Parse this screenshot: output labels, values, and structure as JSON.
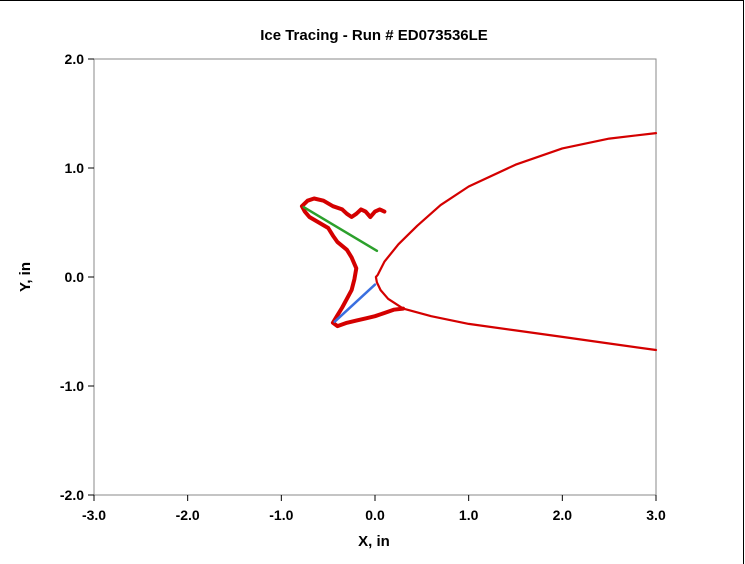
{
  "chart_data": {
    "type": "line",
    "title": "Ice Tracing - Run # ED073536LE",
    "xlabel": "X, in",
    "ylabel": "Y, in",
    "xlim": [
      -3.0,
      3.0
    ],
    "ylim": [
      -2.0,
      2.0
    ],
    "x_ticks": [
      "-3.0",
      "-2.0",
      "-1.0",
      "0.0",
      "1.0",
      "2.0",
      "3.0"
    ],
    "y_ticks": [
      "2.0",
      "1.0",
      "0.0",
      "-1.0",
      "-2.0"
    ],
    "grid": false,
    "legend": "none",
    "colors": {
      "ice": "#d40000",
      "airfoil": "#d40000",
      "upper_line": "#2ca02c",
      "lower_line": "#3a6fe0"
    },
    "series": [
      {
        "role": "airfoil",
        "points": [
          [
            3.0,
            1.32
          ],
          [
            2.5,
            1.27
          ],
          [
            2.0,
            1.18
          ],
          [
            1.5,
            1.03
          ],
          [
            1.0,
            0.83
          ],
          [
            0.7,
            0.66
          ],
          [
            0.45,
            0.47
          ],
          [
            0.25,
            0.3
          ],
          [
            0.1,
            0.14
          ],
          [
            0.03,
            0.02
          ],
          [
            0.01,
            0.0
          ],
          [
            0.02,
            -0.05
          ],
          [
            0.06,
            -0.12
          ],
          [
            0.14,
            -0.2
          ],
          [
            0.3,
            -0.29
          ],
          [
            0.6,
            -0.36
          ],
          [
            1.0,
            -0.43
          ],
          [
            1.5,
            -0.49
          ],
          [
            2.0,
            -0.55
          ],
          [
            2.5,
            -0.61
          ],
          [
            3.0,
            -0.67
          ]
        ]
      },
      {
        "role": "ice-upper-horn",
        "points": [
          [
            0.1,
            0.6
          ],
          [
            0.05,
            0.62
          ],
          [
            0.0,
            0.6
          ],
          [
            -0.05,
            0.55
          ],
          [
            -0.1,
            0.6
          ],
          [
            -0.15,
            0.62
          ],
          [
            -0.2,
            0.58
          ],
          [
            -0.25,
            0.55
          ],
          [
            -0.3,
            0.58
          ],
          [
            -0.35,
            0.62
          ],
          [
            -0.45,
            0.65
          ],
          [
            -0.55,
            0.7
          ],
          [
            -0.65,
            0.72
          ],
          [
            -0.72,
            0.7
          ],
          [
            -0.78,
            0.65
          ],
          [
            -0.75,
            0.6
          ],
          [
            -0.7,
            0.55
          ],
          [
            -0.6,
            0.5
          ],
          [
            -0.5,
            0.45
          ],
          [
            -0.45,
            0.38
          ],
          [
            -0.4,
            0.32
          ],
          [
            -0.3,
            0.25
          ],
          [
            -0.25,
            0.18
          ],
          [
            -0.2,
            0.08
          ],
          [
            -0.22,
            -0.02
          ],
          [
            -0.25,
            -0.12
          ],
          [
            -0.3,
            -0.2
          ],
          [
            -0.35,
            -0.28
          ],
          [
            -0.4,
            -0.35
          ],
          [
            -0.45,
            -0.42
          ],
          [
            -0.4,
            -0.45
          ],
          [
            -0.3,
            -0.42
          ],
          [
            -0.2,
            -0.4
          ],
          [
            -0.1,
            -0.38
          ],
          [
            0.0,
            -0.36
          ],
          [
            0.1,
            -0.33
          ],
          [
            0.2,
            -0.3
          ],
          [
            0.3,
            -0.29
          ]
        ]
      },
      {
        "role": "upper-line",
        "points": [
          [
            -0.76,
            0.64
          ],
          [
            0.02,
            0.24
          ]
        ]
      },
      {
        "role": "lower-line",
        "points": [
          [
            -0.43,
            -0.41
          ],
          [
            0.0,
            -0.07
          ]
        ]
      }
    ]
  }
}
